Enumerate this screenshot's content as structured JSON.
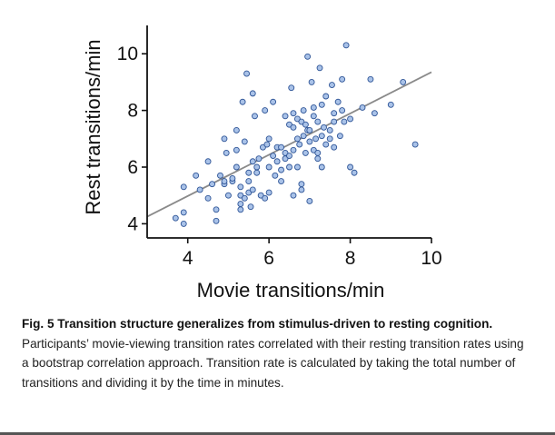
{
  "chart_data": {
    "type": "scatter",
    "xlabel": "Movie transitions/min",
    "ylabel": "Rest transitions/min",
    "xlim": [
      3.0,
      10.0
    ],
    "ylim": [
      3.5,
      11.0
    ],
    "xticks": [
      "4",
      "6",
      "8",
      "10"
    ],
    "yticks": [
      "4",
      "6",
      "8",
      "10"
    ],
    "grid": false,
    "point_color": "#a9c2e8",
    "point_edge_color": "#2f5597",
    "line_color": "#8a8a8a",
    "fit_line": {
      "x": [
        3.0,
        10.0
      ],
      "y": [
        4.25,
        9.35
      ]
    },
    "points": [
      [
        3.7,
        4.2
      ],
      [
        3.9,
        4.0
      ],
      [
        3.9,
        4.4
      ],
      [
        3.9,
        5.3
      ],
      [
        4.2,
        5.7
      ],
      [
        4.5,
        4.9
      ],
      [
        4.5,
        6.2
      ],
      [
        4.6,
        5.4
      ],
      [
        4.7,
        4.1
      ],
      [
        4.7,
        4.5
      ],
      [
        4.8,
        5.7
      ],
      [
        4.9,
        7.0
      ],
      [
        4.9,
        5.4
      ],
      [
        4.9,
        5.5
      ],
      [
        4.95,
        6.5
      ],
      [
        5.0,
        5.0
      ],
      [
        5.1,
        5.5
      ],
      [
        5.1,
        5.6
      ],
      [
        5.2,
        6.0
      ],
      [
        5.2,
        6.6
      ],
      [
        5.3,
        4.7
      ],
      [
        5.3,
        4.5
      ],
      [
        5.3,
        5.0
      ],
      [
        5.3,
        5.3
      ],
      [
        5.35,
        8.3
      ],
      [
        5.4,
        6.9
      ],
      [
        5.4,
        4.9
      ],
      [
        5.45,
        9.3
      ],
      [
        5.5,
        5.1
      ],
      [
        5.5,
        5.5
      ],
      [
        5.5,
        5.8
      ],
      [
        5.55,
        4.6
      ],
      [
        5.6,
        8.6
      ],
      [
        5.6,
        5.2
      ],
      [
        5.6,
        6.2
      ],
      [
        5.65,
        7.8
      ],
      [
        5.7,
        6.0
      ],
      [
        5.7,
        5.8
      ],
      [
        5.75,
        6.3
      ],
      [
        5.8,
        5.0
      ],
      [
        5.85,
        6.7
      ],
      [
        5.9,
        8.0
      ],
      [
        5.9,
        4.9
      ],
      [
        5.95,
        6.8
      ],
      [
        6.0,
        5.1
      ],
      [
        6.0,
        6.0
      ],
      [
        6.1,
        6.4
      ],
      [
        6.1,
        8.3
      ],
      [
        6.15,
        5.7
      ],
      [
        6.2,
        6.7
      ],
      [
        6.2,
        6.2
      ],
      [
        6.3,
        6.7
      ],
      [
        6.3,
        5.5
      ],
      [
        6.3,
        5.9
      ],
      [
        6.4,
        6.3
      ],
      [
        6.4,
        6.5
      ],
      [
        6.5,
        6.0
      ],
      [
        6.5,
        6.4
      ],
      [
        6.5,
        7.5
      ],
      [
        6.55,
        8.8
      ],
      [
        6.6,
        7.4
      ],
      [
        6.6,
        5.0
      ],
      [
        6.6,
        6.6
      ],
      [
        6.6,
        7.9
      ],
      [
        6.7,
        7.0
      ],
      [
        6.7,
        6.0
      ],
      [
        6.7,
        7.7
      ],
      [
        6.75,
        6.8
      ],
      [
        6.8,
        7.6
      ],
      [
        6.8,
        5.2
      ],
      [
        6.8,
        5.4
      ],
      [
        6.85,
        7.1
      ],
      [
        6.85,
        8.0
      ],
      [
        6.9,
        6.5
      ],
      [
        6.9,
        7.5
      ],
      [
        6.95,
        7.3
      ],
      [
        6.95,
        9.9
      ],
      [
        7.0,
        4.8
      ],
      [
        7.0,
        6.9
      ],
      [
        7.0,
        7.3
      ],
      [
        7.05,
        9.0
      ],
      [
        7.1,
        6.6
      ],
      [
        7.1,
        7.8
      ],
      [
        7.1,
        8.1
      ],
      [
        7.15,
        7.0
      ],
      [
        7.2,
        7.6
      ],
      [
        7.2,
        6.3
      ],
      [
        7.25,
        9.5
      ],
      [
        7.3,
        8.2
      ],
      [
        7.3,
        7.1
      ],
      [
        7.3,
        6.0
      ],
      [
        7.35,
        7.4
      ],
      [
        7.4,
        8.5
      ],
      [
        7.4,
        6.8
      ],
      [
        7.5,
        7.3
      ],
      [
        7.5,
        7.0
      ],
      [
        7.55,
        8.9
      ],
      [
        7.6,
        7.9
      ],
      [
        7.6,
        6.7
      ],
      [
        7.7,
        8.3
      ],
      [
        7.75,
        7.1
      ],
      [
        7.8,
        8.0
      ],
      [
        7.8,
        9.1
      ],
      [
        7.85,
        7.6
      ],
      [
        7.9,
        10.3
      ],
      [
        8.0,
        7.7
      ],
      [
        8.0,
        6.0
      ],
      [
        8.1,
        5.8
      ],
      [
        8.3,
        8.1
      ],
      [
        8.5,
        9.1
      ],
      [
        8.6,
        7.9
      ],
      [
        9.0,
        8.2
      ],
      [
        9.3,
        9.0
      ],
      [
        9.6,
        6.8
      ],
      [
        4.3,
        5.2
      ],
      [
        5.2,
        7.3
      ],
      [
        6.0,
        7.0
      ],
      [
        6.4,
        7.8
      ],
      [
        7.2,
        6.5
      ],
      [
        7.6,
        7.6
      ]
    ]
  },
  "caption": {
    "title": "Fig. 5 Transition structure generalizes from stimulus-driven to resting cognition.",
    "body": "Participants’ movie-viewing transition rates correlated with their resting transition rates using a bootstrap correlation approach. Transition rate is calculated by taking the total number of transitions and dividing it by the time in minutes."
  }
}
